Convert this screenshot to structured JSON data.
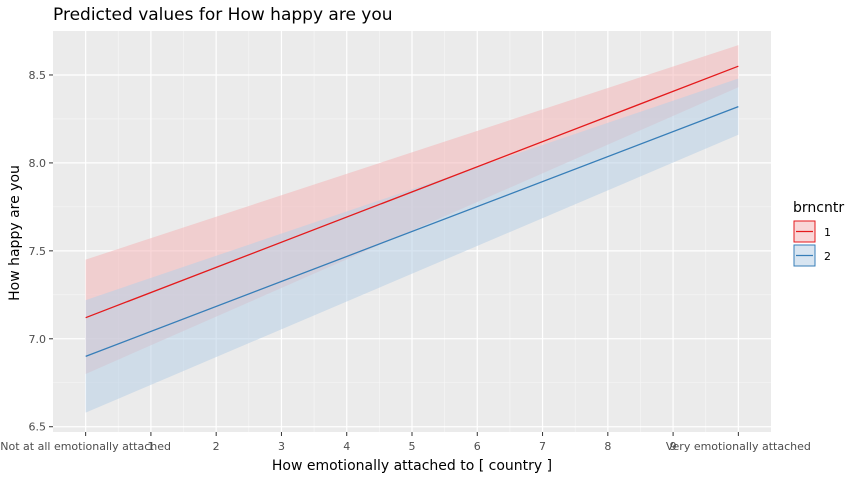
{
  "chart_data": {
    "type": "line",
    "title": "Predicted values for How happy are you",
    "xlabel": "How emotionally attached to [ country ]",
    "ylabel": "How happy are you",
    "xlim": [
      -0.5,
      10.5
    ],
    "ylim": [
      6.47,
      8.75
    ],
    "x_ticks": [
      0,
      1,
      2,
      3,
      4,
      5,
      6,
      7,
      8,
      9,
      10
    ],
    "x_tick_labels": [
      "Not at all emotionally attached",
      "1",
      "2",
      "3",
      "4",
      "5",
      "6",
      "7",
      "8",
      "9",
      "Very emotionally attached"
    ],
    "y_ticks": [
      6.5,
      7.0,
      7.5,
      8.0,
      8.5
    ],
    "y_tick_labels": [
      "6.5",
      "7.0",
      "7.5",
      "8.0",
      "8.5"
    ],
    "grid": true,
    "legend_title": "brncntr",
    "legend_position": "right",
    "series": [
      {
        "name": "1",
        "color": "#e41a1c",
        "fill": "#f4b6b8",
        "x": [
          0,
          10
        ],
        "y": [
          7.12,
          8.55
        ],
        "lower": [
          6.8,
          8.43
        ],
        "upper": [
          7.45,
          8.67
        ]
      },
      {
        "name": "2",
        "color": "#377eb8",
        "fill": "#b8d0e6",
        "x": [
          0,
          10
        ],
        "y": [
          6.9,
          8.32
        ],
        "lower": [
          6.58,
          8.16
        ],
        "upper": [
          7.22,
          8.48
        ]
      }
    ]
  }
}
